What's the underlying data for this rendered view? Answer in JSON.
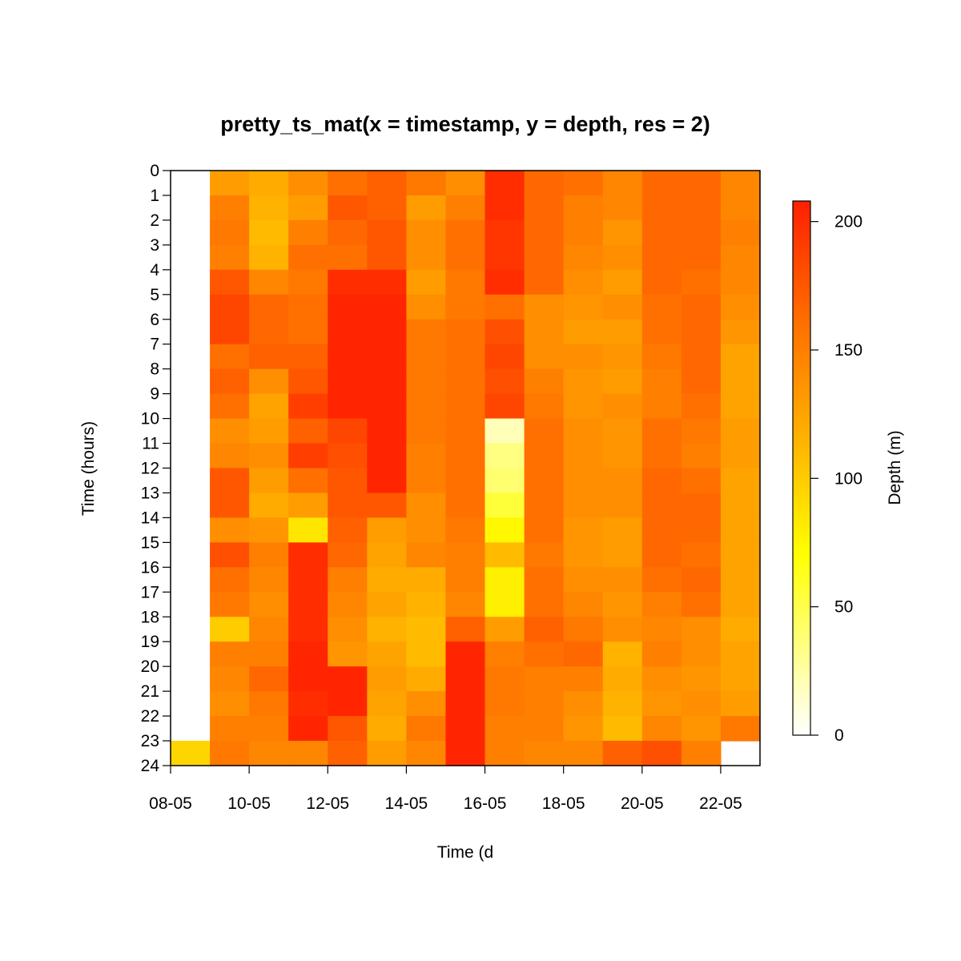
{
  "chart_data": {
    "type": "heatmap",
    "title": "pretty_ts_mat(x = timestamp, y = depth, res = 2)",
    "xlabel": "Time (d",
    "ylabel": "Time (hours)",
    "x_tick_labels": [
      "08-05",
      "10-05",
      "12-05",
      "14-05",
      "16-05",
      "18-05",
      "20-05",
      "22-05"
    ],
    "y_tick_labels": [
      "0",
      "1",
      "2",
      "3",
      "4",
      "5",
      "6",
      "7",
      "8",
      "9",
      "10",
      "11",
      "12",
      "13",
      "14",
      "15",
      "16",
      "17",
      "18",
      "19",
      "20",
      "21",
      "22",
      "23",
      "24"
    ],
    "days": [
      "08-05",
      "09-05",
      "10-05",
      "11-05",
      "12-05",
      "13-05",
      "14-05",
      "15-05",
      "16-05",
      "17-05",
      "18-05",
      "19-05",
      "20-05",
      "21-05",
      "22-05"
    ],
    "y_range": [
      0,
      24
    ],
    "hours": [
      "0",
      "1",
      "2",
      "3",
      "4",
      "5",
      "6",
      "7",
      "8",
      "9",
      "10",
      "11",
      "12",
      "13",
      "14",
      "15",
      "16",
      "17",
      "18",
      "19",
      "20",
      "21",
      "22",
      "23"
    ],
    "depth_matrix": [
      [
        null,
        null,
        null,
        null,
        null,
        null,
        null,
        null,
        null,
        null,
        null,
        null,
        null,
        null,
        null,
        null,
        null,
        null,
        null,
        null,
        null,
        null,
        null,
        95
      ],
      [
        130,
        150,
        155,
        150,
        175,
        185,
        185,
        160,
        170,
        160,
        140,
        145,
        175,
        175,
        140,
        180,
        160,
        155,
        100,
        150,
        145,
        140,
        150,
        155
      ],
      [
        120,
        115,
        110,
        115,
        145,
        165,
        165,
        170,
        140,
        125,
        130,
        140,
        130,
        120,
        135,
        150,
        145,
        140,
        145,
        150,
        165,
        155,
        150,
        145
      ],
      [
        140,
        130,
        150,
        160,
        155,
        160,
        160,
        170,
        175,
        190,
        170,
        190,
        160,
        130,
        85,
        200,
        200,
        200,
        200,
        205,
        205,
        200,
        205,
        145
      ],
      [
        160,
        175,
        165,
        160,
        200,
        205,
        205,
        205,
        205,
        205,
        185,
        180,
        175,
        175,
        170,
        165,
        150,
        145,
        140,
        135,
        205,
        205,
        175,
        170
      ],
      [
        170,
        170,
        175,
        175,
        200,
        205,
        205,
        205,
        205,
        205,
        205,
        205,
        205,
        175,
        130,
        125,
        120,
        125,
        115,
        125,
        130,
        125,
        120,
        130
      ],
      [
        155,
        130,
        140,
        140,
        130,
        140,
        155,
        155,
        155,
        155,
        155,
        150,
        150,
        140,
        140,
        145,
        120,
        115,
        110,
        110,
        120,
        140,
        155,
        145
      ],
      [
        140,
        150,
        160,
        160,
        155,
        155,
        160,
        160,
        160,
        160,
        160,
        160,
        160,
        160,
        155,
        150,
        150,
        145,
        170,
        205,
        205,
        205,
        205,
        205
      ],
      [
        200,
        200,
        195,
        195,
        200,
        160,
        180,
        185,
        180,
        185,
        20,
        35,
        40,
        55,
        75,
        110,
        80,
        80,
        130,
        150,
        155,
        155,
        150,
        150
      ],
      [
        165,
        165,
        165,
        165,
        165,
        140,
        140,
        140,
        150,
        155,
        160,
        160,
        160,
        160,
        160,
        155,
        160,
        160,
        170,
        160,
        150,
        150,
        150,
        145
      ],
      [
        160,
        150,
        150,
        145,
        140,
        135,
        130,
        140,
        135,
        135,
        140,
        140,
        140,
        140,
        135,
        135,
        140,
        145,
        155,
        165,
        150,
        140,
        135,
        145
      ],
      [
        145,
        145,
        135,
        140,
        130,
        140,
        130,
        135,
        130,
        140,
        135,
        135,
        140,
        140,
        130,
        130,
        140,
        135,
        140,
        115,
        120,
        115,
        110,
        170
      ],
      [
        165,
        165,
        165,
        165,
        165,
        160,
        160,
        155,
        150,
        150,
        160,
        160,
        165,
        165,
        165,
        165,
        160,
        150,
        145,
        150,
        140,
        135,
        145,
        180
      ],
      [
        165,
        165,
        165,
        165,
        160,
        165,
        165,
        165,
        165,
        160,
        155,
        150,
        160,
        165,
        165,
        160,
        165,
        160,
        140,
        140,
        135,
        140,
        135,
        150
      ],
      [
        145,
        145,
        150,
        145,
        145,
        140,
        135,
        125,
        125,
        125,
        130,
        130,
        125,
        125,
        125,
        125,
        125,
        125,
        120,
        125,
        125,
        130,
        155,
        null
      ]
    ]
  },
  "colorbar": {
    "label": "Depth (m)",
    "tick_labels": [
      "0",
      "50",
      "100",
      "150",
      "200"
    ],
    "range": [
      0,
      208
    ]
  }
}
